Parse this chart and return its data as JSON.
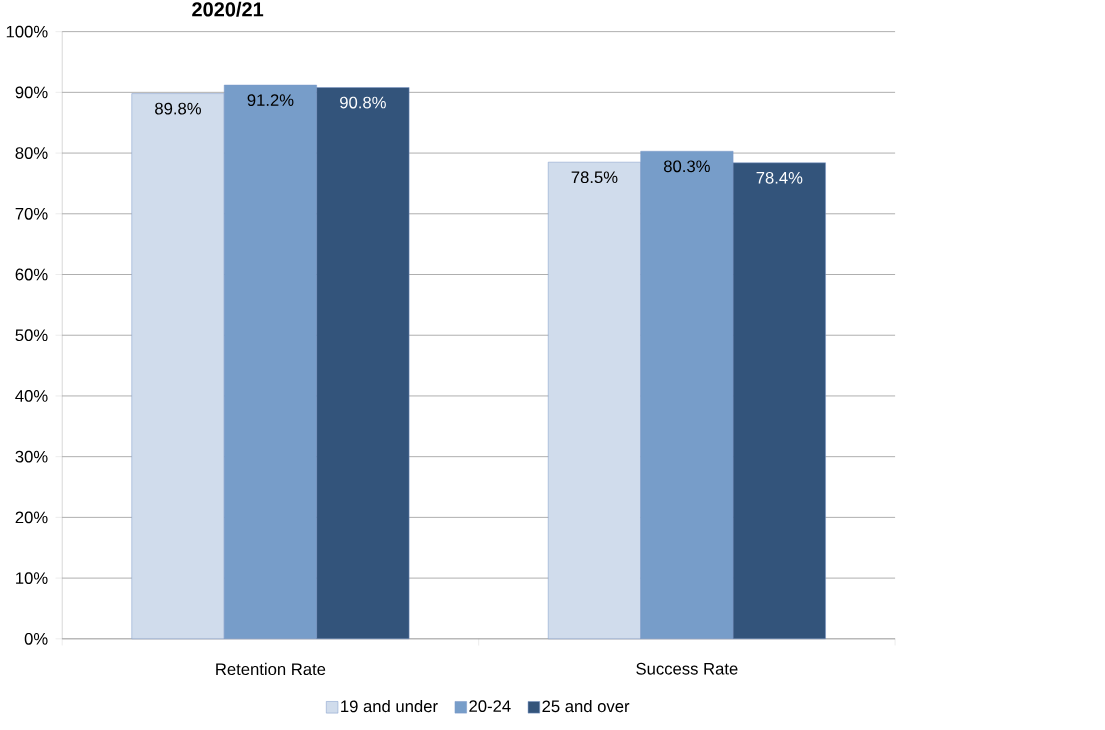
{
  "chart_data": {
    "type": "bar",
    "title": "2020/21",
    "categories": [
      "Retention Rate",
      "Success Rate"
    ],
    "series": [
      {
        "name": "19 and under",
        "color": "#d0dcec",
        "values": [
          89.8,
          78.5
        ],
        "value_labels": [
          "89.8%",
          "78.5%"
        ]
      },
      {
        "name": "20-24",
        "color": "#779dc9",
        "values": [
          91.2,
          80.3
        ],
        "value_labels": [
          "91.2%",
          "80.3%"
        ]
      },
      {
        "name": "25 and over",
        "color": "#33547b",
        "values": [
          90.8,
          78.4
        ],
        "value_labels": [
          "90.8%",
          "78.4%"
        ]
      }
    ],
    "ylim": [
      0,
      100
    ],
    "yticks": [
      {
        "value": 0,
        "label": "0%"
      },
      {
        "value": 10,
        "label": "10%"
      },
      {
        "value": 20,
        "label": "20%"
      },
      {
        "value": 30,
        "label": "30%"
      },
      {
        "value": 40,
        "label": "40%"
      },
      {
        "value": 50,
        "label": "50%"
      },
      {
        "value": 60,
        "label": "60%"
      },
      {
        "value": 70,
        "label": "70%"
      },
      {
        "value": 80,
        "label": "80%"
      },
      {
        "value": 90,
        "label": "90%"
      },
      {
        "value": 100,
        "label": "100%"
      }
    ],
    "grid": "y",
    "legend": "bottom"
  }
}
